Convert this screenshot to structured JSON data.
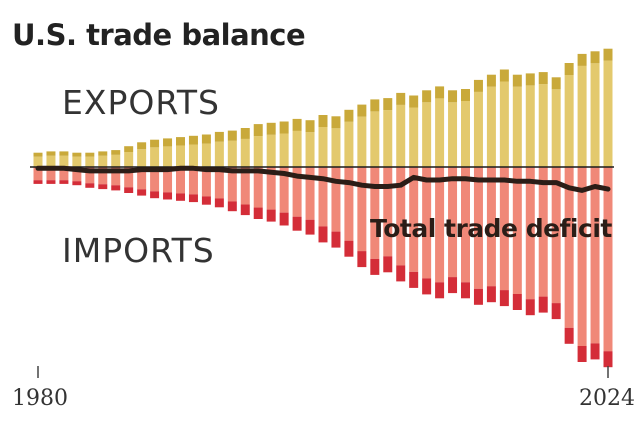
{
  "chart_data": {
    "type": "bar",
    "title": "U.S. trade balance",
    "x_range": [
      1980,
      2024
    ],
    "x_ticks": [
      "1980",
      "2024"
    ],
    "annotations": {
      "exports_label": "EXPORTS",
      "imports_label": "IMPORTS",
      "line_label": "Total trade deficit"
    },
    "x": [
      1980,
      1981,
      1982,
      1983,
      1984,
      1985,
      1986,
      1987,
      1988,
      1989,
      1990,
      1991,
      1992,
      1993,
      1994,
      1995,
      1996,
      1997,
      1998,
      1999,
      2000,
      2001,
      2002,
      2003,
      2004,
      2005,
      2006,
      2007,
      2008,
      2009,
      2010,
      2011,
      2012,
      2013,
      2014,
      2015,
      2016,
      2017,
      2018,
      2019,
      2020,
      2021,
      2022,
      2023,
      2024
    ],
    "series": [
      {
        "name": "EXPORTS",
        "color": "#e3c96d",
        "accent": "#c9a93a",
        "values": [
          11,
          12,
          12,
          11,
          11,
          12,
          13,
          16,
          19,
          21,
          22,
          23,
          24,
          25,
          27,
          28,
          30,
          33,
          34,
          35,
          37,
          36,
          40,
          39,
          44,
          48,
          52,
          53,
          57,
          55,
          59,
          62,
          59,
          60,
          67,
          71,
          75,
          71,
          72,
          73,
          69,
          80,
          87,
          89,
          91
        ]
      },
      {
        "name": "IMPORTS",
        "color": "#f08878",
        "accent": "#d42d38",
        "values": [
          13,
          13,
          13,
          14,
          16,
          17,
          18,
          20,
          22,
          24,
          25,
          26,
          27,
          29,
          31,
          34,
          37,
          40,
          42,
          45,
          49,
          52,
          58,
          62,
          69,
          77,
          83,
          81,
          88,
          93,
          98,
          101,
          97,
          101,
          106,
          104,
          107,
          110,
          114,
          112,
          117,
          136,
          150,
          148,
          154
        ]
      },
      {
        "name": "Total trade deficit",
        "color": "#2b1d17",
        "values": [
          1,
          1,
          1,
          2,
          3,
          3,
          3,
          3,
          2,
          2,
          2,
          1,
          1,
          2,
          2,
          3,
          3,
          3,
          4,
          5,
          7,
          8,
          9,
          11,
          12,
          14,
          15,
          15,
          14,
          8,
          10,
          10,
          9,
          9,
          10,
          10,
          10,
          11,
          11,
          12,
          12,
          16,
          18,
          15,
          17
        ]
      }
    ]
  }
}
